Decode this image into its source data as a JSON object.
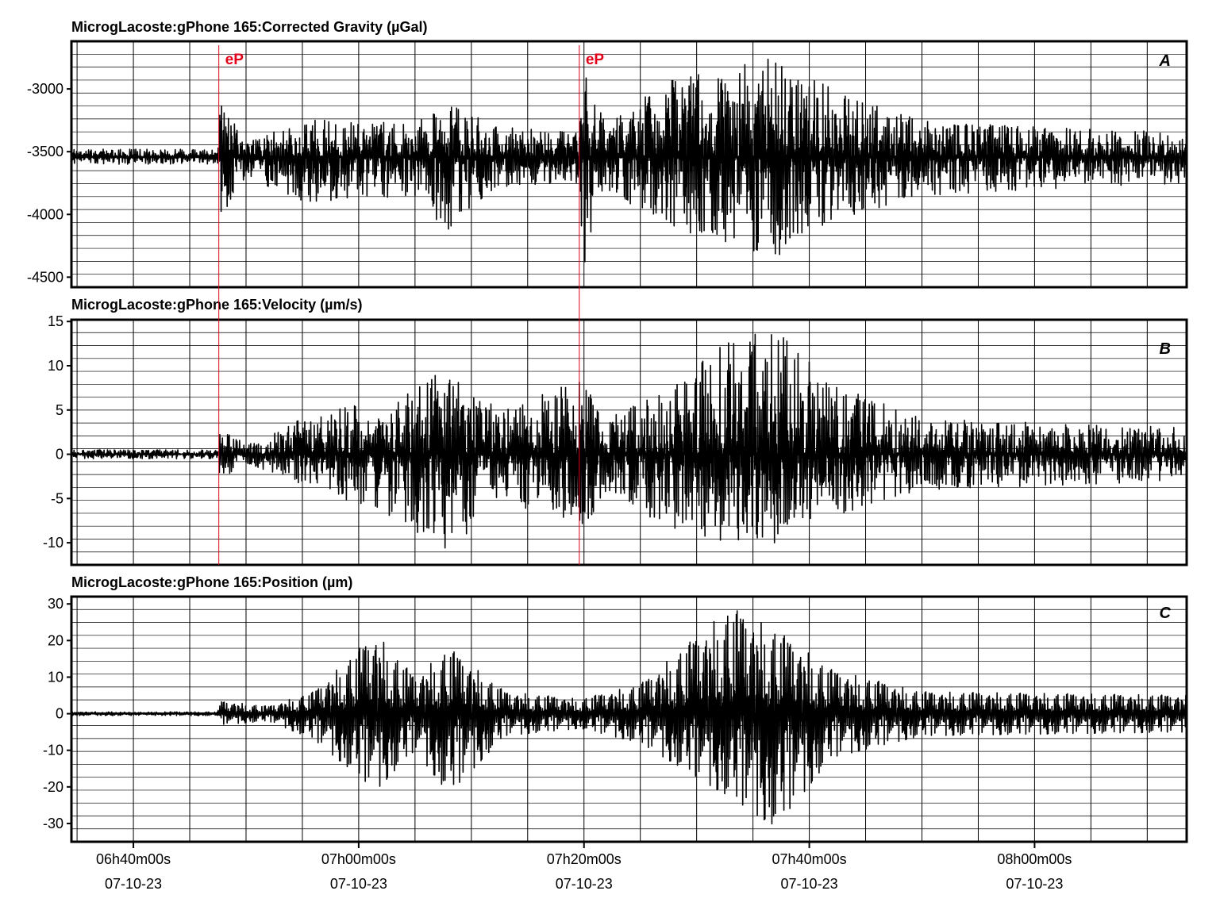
{
  "chart_data": [
    {
      "type": "line",
      "panel_letter": "A",
      "title": "MicrogLacoste:gPhone 165:Corrected Gravity (µGal)",
      "ylabel": "",
      "ylim": [
        -4580,
        -2620
      ],
      "yticks": [
        -3000,
        -3500,
        -4000,
        -4500
      ],
      "ytick_labels": [
        "-3000",
        "-3500",
        "-4000",
        "-4500"
      ],
      "baseline": -3540,
      "x_range_minutes": [
        "06h34m30s",
        "08h13m30s"
      ],
      "series": [
        {
          "envelope": [
            {
              "t": "06h34m30s",
              "min": -3600,
              "max": -3480
            },
            {
              "t": "06h47m30s",
              "min": -3600,
              "max": -3480
            },
            {
              "t": "06h47m40s",
              "min": -4050,
              "max": -3050
            },
            {
              "t": "06h50m00s",
              "min": -3700,
              "max": -3420
            },
            {
              "t": "06h55m00s",
              "min": -3900,
              "max": -3250
            },
            {
              "t": "07h05m00s",
              "min": -3850,
              "max": -3250
            },
            {
              "t": "07h08m00s",
              "min": -4150,
              "max": -3100
            },
            {
              "t": "07h12m00s",
              "min": -3800,
              "max": -3300
            },
            {
              "t": "07h19m30s",
              "min": -3750,
              "max": -3350
            },
            {
              "t": "07h19m40s",
              "min": -4550,
              "max": -2800
            },
            {
              "t": "07h22m00s",
              "min": -3800,
              "max": -3300
            },
            {
              "t": "07h27m00s",
              "min": -4100,
              "max": -2950
            },
            {
              "t": "07h32m00s",
              "min": -4200,
              "max": -2850
            },
            {
              "t": "07h37m00s",
              "min": -4350,
              "max": -2750
            },
            {
              "t": "07h42m00s",
              "min": -4050,
              "max": -3000
            },
            {
              "t": "07h50m00s",
              "min": -3850,
              "max": -3250
            },
            {
              "t": "08h00m00s",
              "min": -3800,
              "max": -3300
            },
            {
              "t": "08h13m30s",
              "min": -3750,
              "max": -3350
            }
          ]
        }
      ],
      "annotations": [
        "eP",
        "eP"
      ]
    },
    {
      "type": "line",
      "panel_letter": "B",
      "title": "MicrogLacoste:gPhone 165:Velocity (µm/s)",
      "ylabel": "",
      "ylim": [
        -12.5,
        15.2
      ],
      "yticks": [
        15,
        10,
        5,
        0,
        -5,
        -10
      ],
      "ytick_labels": [
        "15",
        "10",
        "5",
        "0",
        "-5",
        "-10"
      ],
      "baseline": 0,
      "series": [
        {
          "envelope": [
            {
              "t": "06h34m30s",
              "min": -0.5,
              "max": 0.5
            },
            {
              "t": "06h47m30s",
              "min": -0.5,
              "max": 0.5
            },
            {
              "t": "06h47m40s",
              "min": -3,
              "max": 3.5
            },
            {
              "t": "06h50m00s",
              "min": -1,
              "max": 1
            },
            {
              "t": "06h55m00s",
              "min": -3.5,
              "max": 4
            },
            {
              "t": "07h01m00s",
              "min": -6,
              "max": 6
            },
            {
              "t": "07h08m00s",
              "min": -11,
              "max": 9.5
            },
            {
              "t": "07h13m00s",
              "min": -5,
              "max": 5
            },
            {
              "t": "07h19m40s",
              "min": -9,
              "max": 8.5
            },
            {
              "t": "07h22m00s",
              "min": -4,
              "max": 4
            },
            {
              "t": "07h27m00s",
              "min": -8,
              "max": 7
            },
            {
              "t": "07h33m00s",
              "min": -10,
              "max": 13
            },
            {
              "t": "07h37m00s",
              "min": -10,
              "max": 14
            },
            {
              "t": "07h42m00s",
              "min": -7,
              "max": 8
            },
            {
              "t": "07h50m00s",
              "min": -4,
              "max": 4
            },
            {
              "t": "08h13m30s",
              "min": -3,
              "max": 3
            }
          ]
        }
      ],
      "annotations": []
    },
    {
      "type": "line",
      "panel_letter": "C",
      "title": "MicrogLacoste:gPhone 165:Position (µm)",
      "ylabel": "",
      "ylim": [
        -35,
        32
      ],
      "yticks": [
        30,
        20,
        10,
        0,
        -10,
        -20,
        -30
      ],
      "ytick_labels": [
        "30",
        "20",
        "10",
        "0",
        "-10",
        "-20",
        "-30"
      ],
      "baseline": 0,
      "series": [
        {
          "envelope": [
            {
              "t": "06h34m30s",
              "min": -0.5,
              "max": 0.5
            },
            {
              "t": "06h47m30s",
              "min": -0.5,
              "max": 0.5
            },
            {
              "t": "06h47m40s",
              "min": -3,
              "max": 3.5
            },
            {
              "t": "06h52m00s",
              "min": -2,
              "max": 2
            },
            {
              "t": "06h56m00s",
              "min": -7,
              "max": 6
            },
            {
              "t": "07h01m30s",
              "min": -21,
              "max": 22
            },
            {
              "t": "07h05m00s",
              "min": -10,
              "max": 10
            },
            {
              "t": "07h08m00s",
              "min": -22,
              "max": 18
            },
            {
              "t": "07h13m00s",
              "min": -6,
              "max": 6
            },
            {
              "t": "07h19m40s",
              "min": -4,
              "max": 4
            },
            {
              "t": "07h25m00s",
              "min": -8,
              "max": 8
            },
            {
              "t": "07h33m00s",
              "min": -23,
              "max": 29
            },
            {
              "t": "07h37m00s",
              "min": -31,
              "max": 23
            },
            {
              "t": "07h42m00s",
              "min": -12,
              "max": 12
            },
            {
              "t": "07h50m00s",
              "min": -6,
              "max": 6
            },
            {
              "t": "08h13m30s",
              "min": -5,
              "max": 5
            }
          ]
        }
      ],
      "annotations": []
    }
  ],
  "x_axis": {
    "ticks": [
      {
        "time": "06h40m00s",
        "date": "07-10-23"
      },
      {
        "time": "07h00m00s",
        "date": "07-10-23"
      },
      {
        "time": "07h20m00s",
        "date": "07-10-23"
      },
      {
        "time": "07h40m00s",
        "date": "07-10-23"
      },
      {
        "time": "08h00m00s",
        "date": "07-10-23"
      }
    ],
    "minor_tick_interval": "5m",
    "x_range": [
      "06h34m30s",
      "08h13m30s"
    ]
  },
  "markers": [
    {
      "label": "eP",
      "time": "06h47m35s"
    },
    {
      "label": "eP",
      "time": "07h19m35s"
    }
  ],
  "colors": {
    "trace": "#000000",
    "marker": "#e2001a",
    "grid": "#000000",
    "frame": "#000000"
  }
}
